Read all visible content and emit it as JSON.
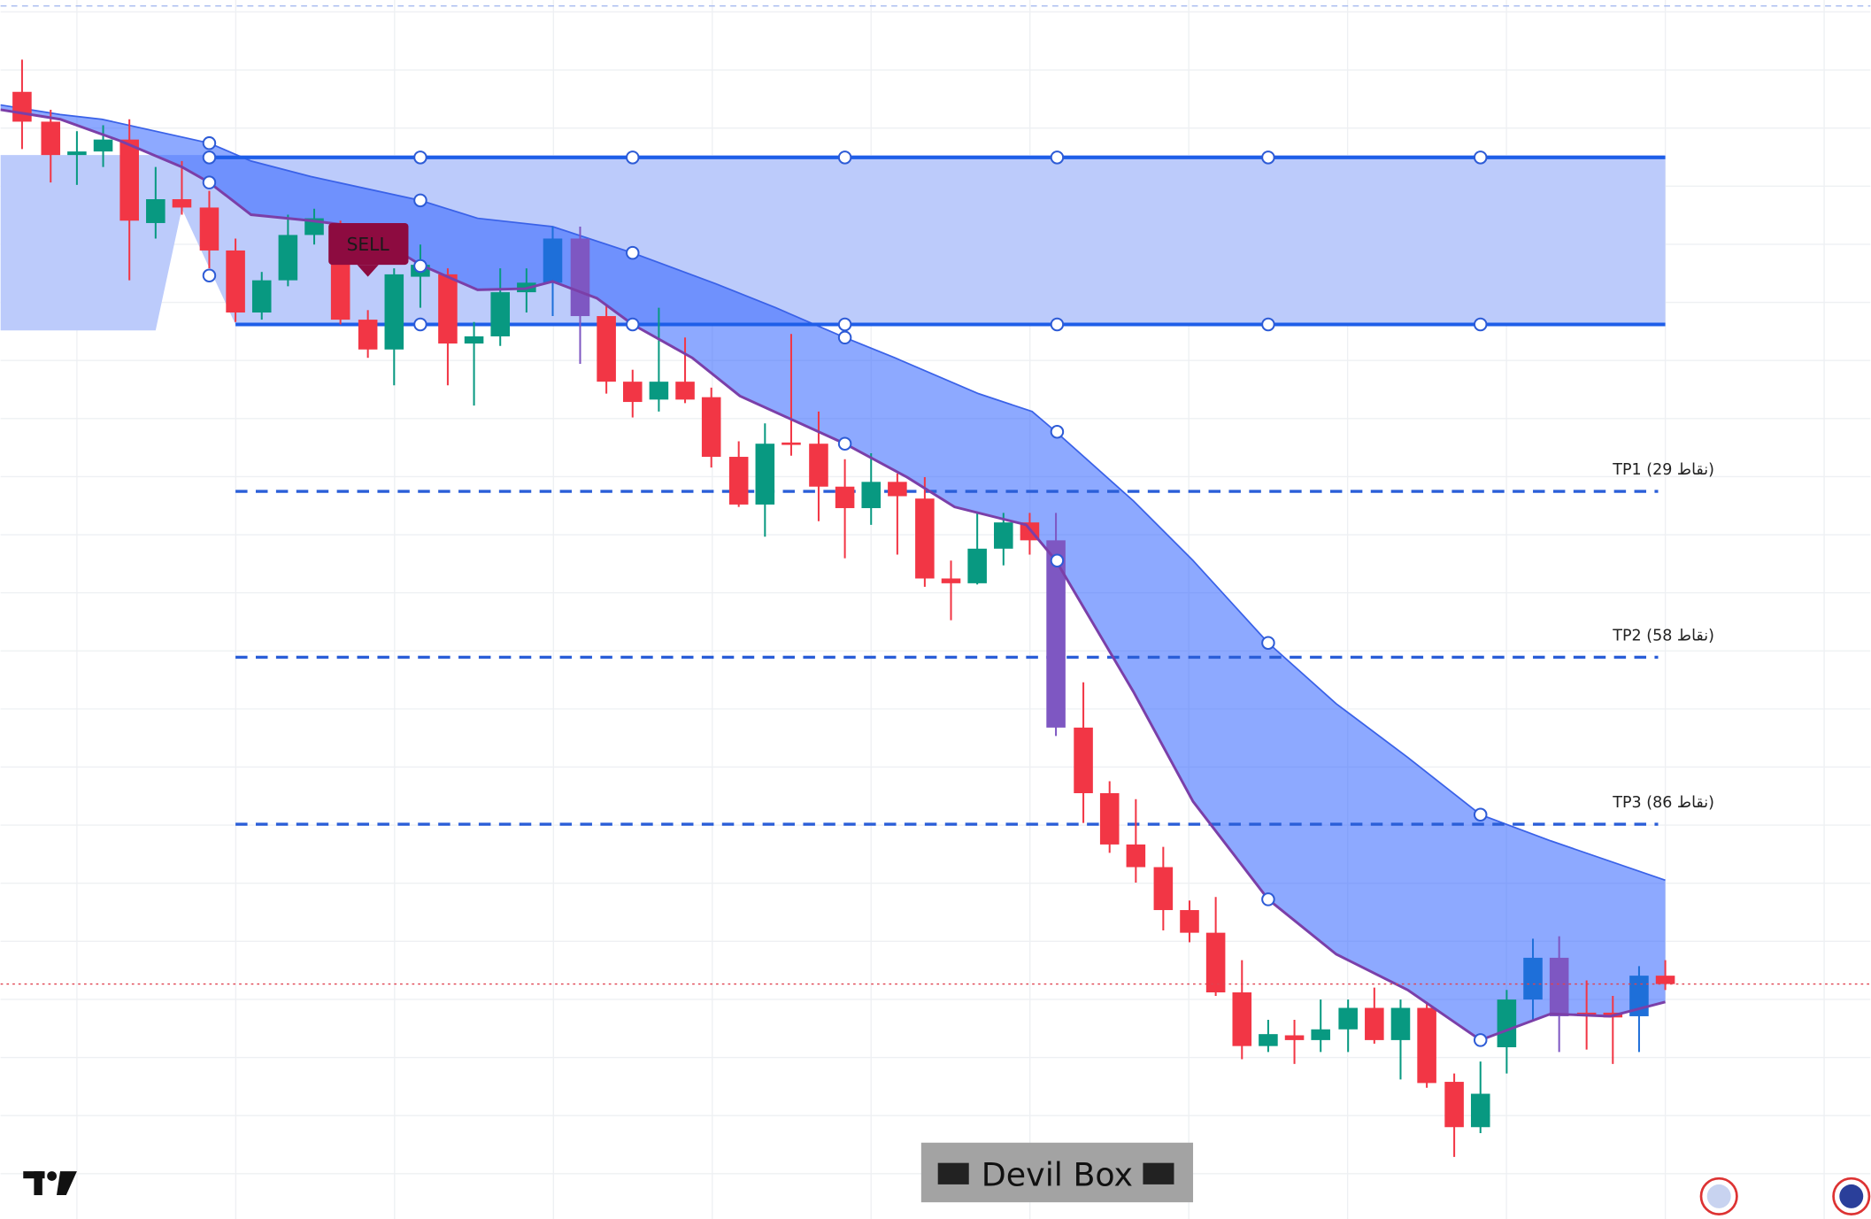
{
  "sell_signal": {
    "label": "SELL"
  },
  "take_profits": [
    {
      "label": "TP1 (29 نقاط)"
    },
    {
      "label": "TP2 (58 نقاط)"
    },
    {
      "label": "TP3 (86 نقاط)"
    }
  ],
  "watermark": {
    "label": "Devil Box"
  }
}
